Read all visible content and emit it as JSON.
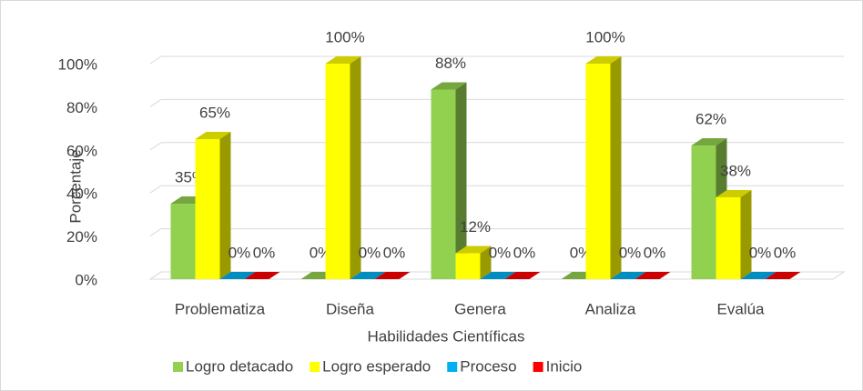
{
  "chart_data": {
    "type": "bar3d",
    "x_label": "Habilidades Científicas",
    "y_label": "Porcentaje",
    "categories": [
      "Problematiza",
      "Diseña",
      "Genera",
      "Analiza",
      "Evalúa"
    ],
    "series": [
      {
        "name": "Logro detacado",
        "color": "#92d050",
        "values": [
          35,
          0,
          88,
          0,
          62
        ],
        "value_labels": [
          "35%",
          "0%",
          "88%",
          "0%",
          "62%"
        ]
      },
      {
        "name": "Logro esperado",
        "color": "#ffff00",
        "values": [
          65,
          100,
          12,
          100,
          38
        ],
        "value_labels": [
          "65%",
          "100%",
          "12%",
          "100%",
          "38%"
        ]
      },
      {
        "name": "Proceso",
        "color": "#00b0f0",
        "values": [
          0,
          0,
          0,
          0,
          0
        ],
        "value_labels": [
          "0%",
          "0%",
          "0%",
          "0%",
          "0%"
        ]
      },
      {
        "name": "Inicio",
        "color": "#ff0000",
        "values": [
          0,
          0,
          0,
          0,
          0
        ],
        "value_labels": [
          "0%",
          "0%",
          "0%",
          "0%",
          "0%"
        ]
      }
    ],
    "ylim": [
      0,
      100
    ],
    "yticks": [
      {
        "value": 0,
        "label": "0%"
      },
      {
        "value": 20,
        "label": "20%"
      },
      {
        "value": 40,
        "label": "40%"
      },
      {
        "value": 60,
        "label": "60%"
      },
      {
        "value": 80,
        "label": "80%"
      },
      {
        "value": 100,
        "label": "100%"
      }
    ],
    "grid": true,
    "legend": "bottom"
  }
}
